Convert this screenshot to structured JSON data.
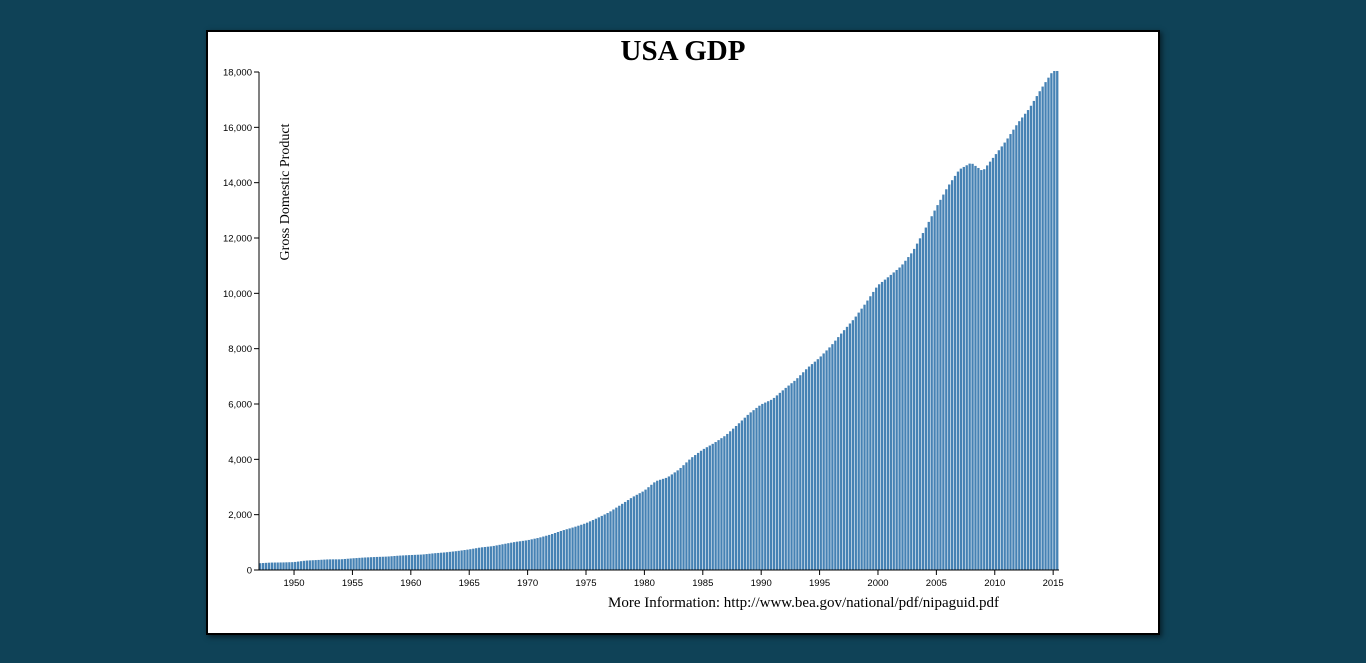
{
  "chart_data": {
    "type": "bar",
    "title": "USA GDP",
    "ylabel": "Gross Domestic Product",
    "xlabel": "",
    "note": "More Information: http://www.bea.gov/national/pdf/nipaguid.pdf",
    "bar_color": "#4682b4",
    "background": "#0f4257",
    "ylim": [
      0,
      18000
    ],
    "xlim": [
      1947.0,
      2015.5
    ],
    "y_ticks": [
      0,
      2000,
      4000,
      6000,
      8000,
      10000,
      12000,
      14000,
      16000,
      18000
    ],
    "y_tick_labels": [
      "0",
      "2,000",
      "4,000",
      "6,000",
      "8,000",
      "10,000",
      "12,000",
      "14,000",
      "16,000",
      "18,000"
    ],
    "x_ticks": [
      1950,
      1955,
      1960,
      1965,
      1970,
      1975,
      1980,
      1985,
      1990,
      1995,
      2000,
      2005,
      2010,
      2015
    ],
    "x_tick_labels": [
      "1950",
      "1955",
      "1960",
      "1965",
      "1970",
      "1975",
      "1980",
      "1985",
      "1990",
      "1995",
      "2000",
      "2005",
      "2010",
      "2015"
    ],
    "series": [
      {
        "years": [
          1947,
          1948,
          1949,
          1950,
          1951,
          1952,
          1953,
          1954,
          1955,
          1956,
          1957,
          1958,
          1959,
          1960,
          1961,
          1962,
          1963,
          1964,
          1965,
          1966,
          1967,
          1968,
          1969,
          1970,
          1971,
          1972,
          1973,
          1974,
          1975,
          1976,
          1977,
          1978,
          1979,
          1980,
          1981,
          1982,
          1983,
          1984,
          1985,
          1986,
          1987,
          1988,
          1989,
          1990,
          1991,
          1992,
          1993,
          1994,
          1995,
          1996,
          1997,
          1998,
          1999,
          2000,
          2001,
          2002,
          2003,
          2004,
          2005,
          2006,
          2007,
          2008,
          2009,
          2010,
          2011,
          2012,
          2013,
          2014,
          2015
        ],
        "values": [
          243,
          268,
          273,
          285,
          339,
          361,
          385,
          385,
          421,
          450,
          470,
          485,
          519,
          541,
          559,
          604,
          638,
          686,
          743,
          815,
          860,
          940,
          1017,
          1075,
          1166,
          1283,
          1428,
          1549,
          1688,
          1877,
          2086,
          2357,
          2632,
          2862,
          3211,
          3345,
          3638,
          4040,
          4347,
          4590,
          4870,
          5253,
          5657,
          5979,
          6174,
          6539,
          6879,
          7309,
          7664,
          8100,
          8609,
          9089,
          9661,
          10285,
          10622,
          10978,
          11511,
          12275,
          13094,
          13856,
          14478,
          14719,
          14419,
          14964,
          15518,
          16155,
          16692,
          17393,
          18037
        ]
      }
    ]
  }
}
